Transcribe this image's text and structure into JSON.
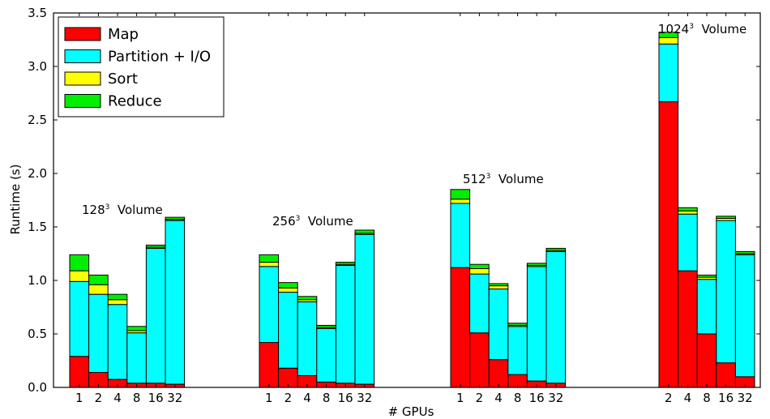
{
  "chart_data": {
    "type": "bar",
    "stacked": true,
    "xlabel": "# GPUs",
    "ylabel": "Runtime (s)",
    "ylim": [
      0,
      3.5
    ],
    "yticks": [
      "0.0",
      "0.5",
      "1.0",
      "1.5",
      "2.0",
      "2.5",
      "3.0",
      "3.5"
    ],
    "legend_position": "top-left",
    "series": [
      {
        "name": "Map",
        "color": "#ff0000"
      },
      {
        "name": "Partition + I/O",
        "color": "#00ffff"
      },
      {
        "name": "Sort",
        "color": "#ffff00"
      },
      {
        "name": "Reduce",
        "color": "#00ee00"
      }
    ],
    "groups": [
      {
        "base": "128",
        "sup": "3",
        "suffix": "Volume",
        "bars": [
          {
            "gpus": "1",
            "values": [
              0.29,
              0.7,
              0.1,
              0.15
            ]
          },
          {
            "gpus": "2",
            "values": [
              0.14,
              0.73,
              0.09,
              0.09
            ]
          },
          {
            "gpus": "4",
            "values": [
              0.075,
              0.7,
              0.045,
              0.05
            ]
          },
          {
            "gpus": "8",
            "values": [
              0.04,
              0.47,
              0.02,
              0.04
            ]
          },
          {
            "gpus": "16",
            "values": [
              0.04,
              1.26,
              0.01,
              0.02
            ]
          },
          {
            "gpus": "32",
            "values": [
              0.03,
              1.53,
              0.01,
              0.02
            ]
          }
        ]
      },
      {
        "base": "256",
        "sup": "3",
        "suffix": "Volume",
        "bars": [
          {
            "gpus": "1",
            "values": [
              0.42,
              0.71,
              0.04,
              0.07
            ]
          },
          {
            "gpus": "2",
            "values": [
              0.18,
              0.71,
              0.04,
              0.05
            ]
          },
          {
            "gpus": "4",
            "values": [
              0.11,
              0.69,
              0.02,
              0.03
            ]
          },
          {
            "gpus": "8",
            "values": [
              0.05,
              0.5,
              0.01,
              0.02
            ]
          },
          {
            "gpus": "16",
            "values": [
              0.04,
              1.1,
              0.01,
              0.02
            ]
          },
          {
            "gpus": "32",
            "values": [
              0.03,
              1.4,
              0.01,
              0.03
            ]
          }
        ]
      },
      {
        "base": "512",
        "sup": "3",
        "suffix": "Volume",
        "bars": [
          {
            "gpus": "1",
            "values": [
              1.12,
              0.6,
              0.04,
              0.09
            ]
          },
          {
            "gpus": "2",
            "values": [
              0.51,
              0.55,
              0.05,
              0.04
            ]
          },
          {
            "gpus": "4",
            "values": [
              0.26,
              0.66,
              0.03,
              0.02
            ]
          },
          {
            "gpus": "8",
            "values": [
              0.12,
              0.45,
              0.01,
              0.02
            ]
          },
          {
            "gpus": "16",
            "values": [
              0.06,
              1.07,
              0.01,
              0.02
            ]
          },
          {
            "gpus": "32",
            "values": [
              0.04,
              1.23,
              0.01,
              0.02
            ]
          }
        ]
      },
      {
        "base": "1024",
        "sup": "3",
        "suffix": "Volume",
        "bars": [
          {
            "gpus": "2",
            "values": [
              2.67,
              0.54,
              0.06,
              0.05
            ]
          },
          {
            "gpus": "4",
            "values": [
              1.09,
              0.53,
              0.03,
              0.03
            ]
          },
          {
            "gpus": "8",
            "values": [
              0.5,
              0.51,
              0.02,
              0.02
            ]
          },
          {
            "gpus": "16",
            "values": [
              0.23,
              1.33,
              0.02,
              0.02
            ]
          },
          {
            "gpus": "32",
            "values": [
              0.1,
              1.14,
              0.01,
              0.02
            ]
          }
        ]
      }
    ]
  }
}
